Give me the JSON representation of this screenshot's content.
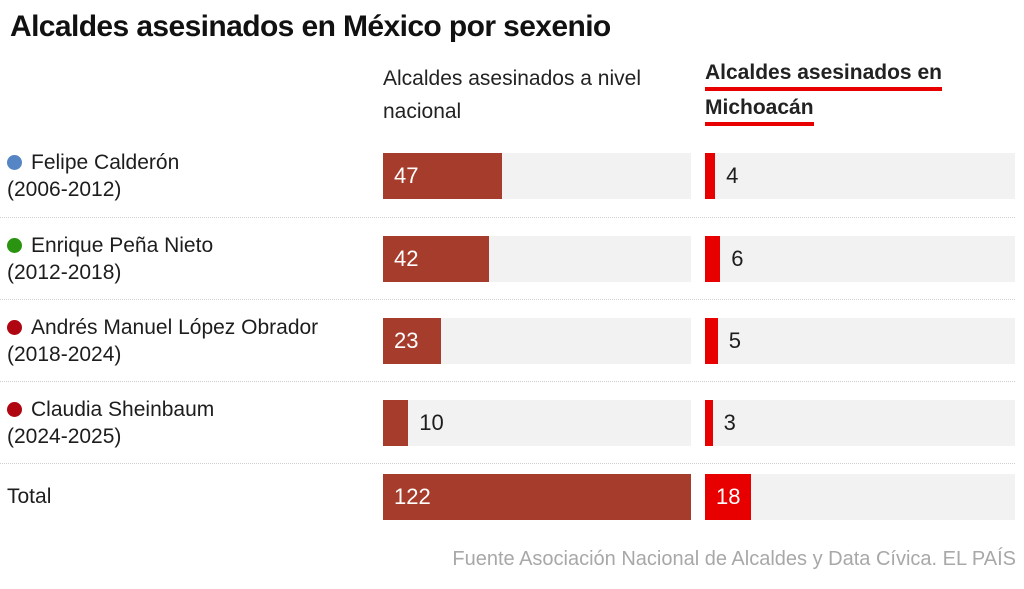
{
  "title": "Alcaldes asesinados en México por sexenio",
  "columns": {
    "national_header_line1": "Alcaldes asesinados a nivel",
    "national_header_line2": "nacional",
    "michoacan_header_line1": "Alcaldes asesinados en",
    "michoacan_header_line2": "Michoacán"
  },
  "footer": "Fuente Asociación Nacional de Alcaldes y Data Cívica. EL PAÍS",
  "colors": {
    "national_bar": "#a63c2b",
    "michoacan_bar": "#e80000",
    "bar_track": "#f2f2f2",
    "header_underline": "#e80000",
    "separator": "#cfcfcf",
    "footer_text": "#a8a8a8",
    "dot_calderon_blue": "#5585c4",
    "dot_pena_green": "#2a9410",
    "dot_morena_red": "#b00611"
  },
  "chart_data": {
    "type": "bar",
    "orientation": "horizontal",
    "title": "Alcaldes asesinados en México por sexenio",
    "categories": [
      "Felipe Calderón (2006-2012)",
      "Enrique Peña Nieto (2012-2018)",
      "Andrés Manuel López Obrador (2018-2024)",
      "Claudia Sheinbaum (2024-2025)",
      "Total"
    ],
    "series": [
      {
        "name": "Alcaldes asesinados a nivel nacional",
        "values": [
          47,
          42,
          23,
          10,
          122
        ]
      },
      {
        "name": "Alcaldes asesinados en Michoacán",
        "values": [
          4,
          6,
          5,
          3,
          18
        ]
      }
    ],
    "x_max": 122,
    "grid": false,
    "value_labels": true,
    "source": "Fuente Asociación Nacional de Alcaldes y Data Cívica. EL PAÍS"
  },
  "rows": [
    {
      "name": "Felipe Calderón",
      "term": "(2006-2012)",
      "dot_color": "#5585c4",
      "national": 47,
      "michoacan": 4
    },
    {
      "name": "Enrique Peña Nieto",
      "term": "(2012-2018)",
      "dot_color": "#2a9410",
      "national": 42,
      "michoacan": 6
    },
    {
      "name": "Andrés Manuel López Obrador",
      "term": "(2018-2024)",
      "dot_color": "#b00611",
      "national": 23,
      "michoacan": 5
    },
    {
      "name": "Claudia Sheinbaum",
      "term": "(2024-2025)",
      "dot_color": "#b00611",
      "national": 10,
      "michoacan": 3
    },
    {
      "name": "Total",
      "term": "",
      "dot_color": "",
      "national": 122,
      "michoacan": 18
    }
  ]
}
